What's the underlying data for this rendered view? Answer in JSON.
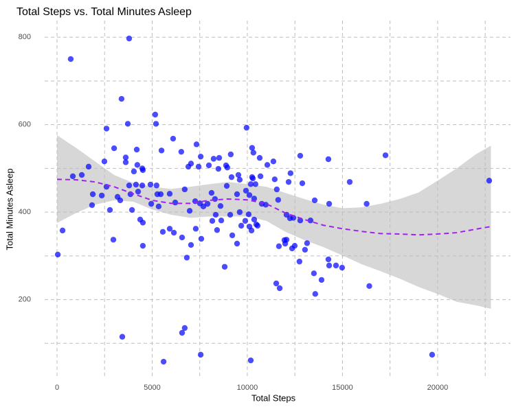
{
  "chart_data": {
    "type": "scatter",
    "title": "Total Steps vs. Total Minutes Asleep",
    "x_label": "Total Steps",
    "y_label": "Total Minutes Asleep",
    "xlim": [
      -650,
      23830
    ],
    "ylim": [
      22,
      838
    ],
    "xticks": [
      0,
      5000,
      10000,
      15000,
      20000
    ],
    "yticks": [
      200,
      400,
      600,
      800
    ],
    "x_minor_grid": [
      2500,
      7500,
      12500,
      17500,
      22500
    ],
    "y_minor_grid": [
      100,
      300,
      500,
      700
    ],
    "grid": true,
    "color": "#0000ff",
    "x": [
      40,
      290,
      720,
      830,
      1300,
      1660,
      1880,
      1840,
      2350,
      2490,
      2600,
      2600,
      2780,
      2960,
      3000,
      3180,
      3320,
      3390,
      3430,
      3610,
      3610,
      3720,
      3790,
      3790,
      3860,
      3940,
      4040,
      4150,
      4220,
      4190,
      4260,
      4370,
      4480,
      4480,
      4510,
      4510,
      4510,
      4910,
      4950,
      5160,
      5200,
      5230,
      5270,
      5340,
      5490,
      5450,
      5560,
      5600,
      5920,
      5920,
      6100,
      6140,
      6210,
      6530,
      6570,
      6570,
      6710,
      6710,
      6820,
      6900,
      6970,
      7040,
      7040,
      7260,
      7290,
      7330,
      7440,
      7510,
      7550,
      7550,
      7580,
      7690,
      7910,
      7980,
      8120,
      8160,
      8230,
      8300,
      8340,
      8410,
      8480,
      8520,
      8590,
      8630,
      8810,
      8880,
      8920,
      8950,
      9100,
      9130,
      9210,
      9170,
      9460,
      9460,
      9530,
      9600,
      9600,
      9680,
      9890,
      9930,
      9960,
      10070,
      10110,
      10110,
      10180,
      10180,
      10220,
      10250,
      10250,
      10290,
      10320,
      10360,
      10360,
      10430,
      10470,
      10540,
      10650,
      10690,
      10760,
      10970,
      11050,
      11370,
      11440,
      11520,
      11550,
      11620,
      11660,
      11700,
      11950,
      11990,
      12060,
      12060,
      12170,
      12240,
      12270,
      12350,
      12420,
      12490,
      12740,
      12780,
      12780,
      12890,
      13030,
      13140,
      13320,
      13500,
      13540,
      13570,
      13900,
      14260,
      14260,
      14300,
      14300,
      14660,
      14980,
      15380,
      16270,
      16410,
      17260,
      19710,
      22710
    ],
    "y": [
      303,
      358,
      750,
      482,
      485,
      504,
      441,
      416,
      438,
      516,
      458,
      591,
      405,
      337,
      546,
      435,
      427,
      659,
      115,
      525,
      514,
      602,
      797,
      461,
      441,
      405,
      493,
      463,
      508,
      543,
      447,
      383,
      500,
      461,
      376,
      323,
      496,
      463,
      419,
      623,
      602,
      461,
      441,
      413,
      541,
      441,
      355,
      58,
      442,
      362,
      568,
      353,
      422,
      538,
      124,
      342,
      135,
      452,
      296,
      504,
      403,
      511,
      325,
      425,
      362,
      555,
      504,
      420,
      74,
      527,
      339,
      413,
      419,
      507,
      444,
      380,
      522,
      430,
      394,
      359,
      499,
      524,
      414,
      381,
      275,
      507,
      460,
      502,
      394,
      532,
      347,
      480,
      328,
      441,
      485,
      474,
      400,
      369,
      380,
      449,
      593,
      395,
      367,
      439,
      464,
      61,
      358,
      547,
      480,
      477,
      536,
      431,
      383,
      464,
      372,
      369,
      524,
      482,
      419,
      417,
      508,
      516,
      475,
      237,
      452,
      428,
      322,
      226,
      336,
      328,
      394,
      337,
      469,
      386,
      489,
      317,
      387,
      323,
      287,
      381,
      529,
      466,
      314,
      329,
      381,
      260,
      427,
      213,
      245,
      292,
      521,
      419,
      278,
      278,
      273,
      469,
      419,
      231,
      530,
      74,
      472
    ],
    "smooth": {
      "color": "#a020f0",
      "x": [
        0,
        1000,
        2000,
        3000,
        4000,
        5000,
        6000,
        7000,
        8000,
        9000,
        10000,
        11000,
        12000,
        13000,
        14000,
        15000,
        16000,
        17000,
        18000,
        19000,
        20000,
        21000,
        22000,
        22800
      ],
      "y": [
        475,
        474,
        469,
        458,
        442,
        427,
        420,
        420,
        427,
        430,
        428,
        419,
        398,
        383,
        370,
        362,
        356,
        351,
        350,
        348,
        350,
        353,
        361,
        367
      ],
      "lower": [
        375,
        398,
        417,
        427,
        424,
        406,
        394,
        387,
        390,
        390,
        390,
        380,
        355,
        336,
        320,
        301,
        281,
        265,
        248,
        229,
        213,
        195,
        187,
        179
      ],
      "upper": [
        576,
        547,
        516,
        485,
        467,
        458,
        453,
        458,
        464,
        469,
        464,
        458,
        444,
        430,
        417,
        409,
        411,
        419,
        430,
        445,
        472,
        500,
        532,
        552
      ]
    }
  }
}
